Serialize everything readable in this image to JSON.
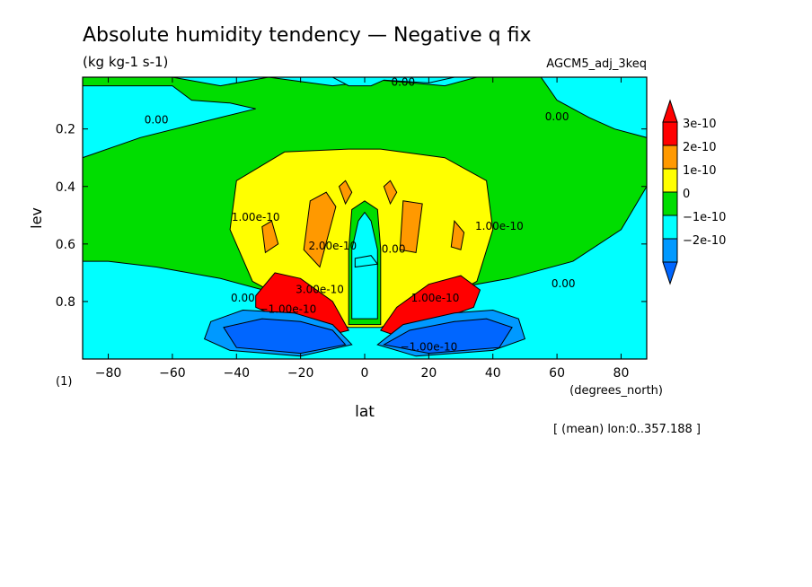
{
  "header": {
    "title": "Absolute humidity tendency — Negative q fix",
    "units": "(kg kg-1 s-1)",
    "run": "AGCM5_adj_3keq"
  },
  "footer": {
    "region_note": "[ (mean) lon:0..357.188 ]",
    "panel_index": "(1)"
  },
  "chart_data": {
    "type": "heatmap",
    "xlabel": "lat",
    "xunits": "(degrees_north)",
    "ylabel": "lev",
    "xlim": [
      -88,
      88
    ],
    "ylim": [
      1.0,
      0.02
    ],
    "x_ticks": [
      -80,
      -60,
      -40,
      -20,
      0,
      20,
      40,
      60,
      80
    ],
    "x_tick_labels": [
      "−80",
      "−60",
      "−40",
      "−20",
      "0",
      "20",
      "40",
      "60",
      "80"
    ],
    "y_ticks": [
      0.2,
      0.4,
      0.6,
      0.8
    ],
    "y_tick_labels": [
      "0.2",
      "0.4",
      "0.6",
      "0.8"
    ],
    "legend": {
      "placement": "right",
      "levels": [
        {
          "label": "3e-10",
          "color": "#ff0000"
        },
        {
          "label": "2e-10",
          "color": "#ff9900"
        },
        {
          "label": "1e-10",
          "color": "#ffff00"
        },
        {
          "label": "0",
          "color": "#00dd00"
        },
        {
          "label": "−1e-10",
          "color": "#00ffff"
        },
        {
          "label": "−2e-10",
          "color": "#0099ff"
        }
      ],
      "under_color": "#0066ff"
    },
    "background_color": "#00ffff",
    "regions": [
      {
        "level": "0",
        "color": "#00dd00",
        "points": [
          [
            -88,
            0.02
          ],
          [
            -60,
            0.02
          ],
          [
            -45,
            0.05
          ],
          [
            -30,
            0.02
          ],
          [
            -10,
            0.05
          ],
          [
            5,
            0.03
          ],
          [
            25,
            0.05
          ],
          [
            35,
            0.02
          ],
          [
            88,
            0.02
          ],
          [
            88,
            0.4
          ],
          [
            80,
            0.55
          ],
          [
            65,
            0.66
          ],
          [
            45,
            0.72
          ],
          [
            25,
            0.76
          ],
          [
            5,
            0.87
          ],
          [
            -5,
            0.87
          ],
          [
            -25,
            0.78
          ],
          [
            -45,
            0.72
          ],
          [
            -65,
            0.68
          ],
          [
            -80,
            0.66
          ],
          [
            -88,
            0.66
          ]
        ]
      },
      {
        "level": "1e-10",
        "color": "#ffff00",
        "points": [
          [
            -40,
            0.38
          ],
          [
            -25,
            0.28
          ],
          [
            -5,
            0.27
          ],
          [
            5,
            0.27
          ],
          [
            25,
            0.3
          ],
          [
            38,
            0.38
          ],
          [
            40,
            0.55
          ],
          [
            35,
            0.73
          ],
          [
            20,
            0.82
          ],
          [
            5,
            0.89
          ],
          [
            -5,
            0.89
          ],
          [
            -20,
            0.82
          ],
          [
            -35,
            0.73
          ],
          [
            -42,
            0.55
          ]
        ]
      },
      {
        "level": "0",
        "color": "#00dd00",
        "points": [
          [
            -4,
            0.48
          ],
          [
            0,
            0.45
          ],
          [
            4,
            0.48
          ],
          [
            5,
            0.62
          ],
          [
            5,
            0.88
          ],
          [
            -5,
            0.88
          ],
          [
            -5,
            0.62
          ]
        ]
      },
      {
        "level": "−1e-10",
        "color": "#00ffff",
        "points": [
          [
            -2,
            0.52
          ],
          [
            0,
            0.49
          ],
          [
            2,
            0.52
          ],
          [
            4,
            0.62
          ],
          [
            4,
            0.86
          ],
          [
            -4,
            0.86
          ],
          [
            -4,
            0.62
          ]
        ]
      },
      {
        "level": "2e-10",
        "color": "#ff9900",
        "points": [
          [
            -17,
            0.45
          ],
          [
            -12,
            0.42
          ],
          [
            -9,
            0.47
          ],
          [
            -14,
            0.68
          ],
          [
            -19,
            0.62
          ]
        ]
      },
      {
        "level": "2e-10",
        "color": "#ff9900",
        "points": [
          [
            -32,
            0.54
          ],
          [
            -29,
            0.52
          ],
          [
            -27,
            0.6
          ],
          [
            -31,
            0.63
          ]
        ]
      },
      {
        "level": "2e-10",
        "color": "#ff9900",
        "points": [
          [
            12,
            0.45
          ],
          [
            18,
            0.46
          ],
          [
            16,
            0.63
          ],
          [
            11,
            0.62
          ]
        ]
      },
      {
        "level": "2e-10",
        "color": "#ff9900",
        "points": [
          [
            28,
            0.52
          ],
          [
            31,
            0.56
          ],
          [
            30,
            0.62
          ],
          [
            27,
            0.61
          ]
        ]
      },
      {
        "level": "2e-10",
        "color": "#ff9900",
        "points": [
          [
            -8,
            0.4
          ],
          [
            -6,
            0.38
          ],
          [
            -4,
            0.42
          ],
          [
            -6,
            0.46
          ]
        ]
      },
      {
        "level": "2e-10",
        "color": "#ff9900",
        "points": [
          [
            6,
            0.4
          ],
          [
            8,
            0.38
          ],
          [
            10,
            0.42
          ],
          [
            8,
            0.46
          ]
        ]
      },
      {
        "level": "3e-10",
        "color": "#ff0000",
        "points": [
          [
            -34,
            0.78
          ],
          [
            -28,
            0.7
          ],
          [
            -20,
            0.72
          ],
          [
            -10,
            0.8
          ],
          [
            -5,
            0.9
          ],
          [
            -12,
            0.92
          ],
          [
            -26,
            0.86
          ],
          [
            -34,
            0.82
          ]
        ]
      },
      {
        "level": "3e-10",
        "color": "#ff0000",
        "points": [
          [
            5,
            0.9
          ],
          [
            10,
            0.82
          ],
          [
            20,
            0.74
          ],
          [
            30,
            0.71
          ],
          [
            36,
            0.76
          ],
          [
            34,
            0.82
          ],
          [
            24,
            0.86
          ],
          [
            10,
            0.92
          ]
        ]
      },
      {
        "level": "−2e-10",
        "color": "#0099ff",
        "points": [
          [
            -48,
            0.87
          ],
          [
            -38,
            0.83
          ],
          [
            -22,
            0.84
          ],
          [
            -10,
            0.88
          ],
          [
            -4,
            0.95
          ],
          [
            -20,
            0.99
          ],
          [
            -42,
            0.97
          ],
          [
            -50,
            0.93
          ]
        ]
      },
      {
        "level": "−2e-10",
        "color": "#0099ff",
        "points": [
          [
            4,
            0.95
          ],
          [
            12,
            0.88
          ],
          [
            28,
            0.84
          ],
          [
            40,
            0.83
          ],
          [
            48,
            0.86
          ],
          [
            50,
            0.93
          ],
          [
            40,
            0.97
          ],
          [
            16,
            0.99
          ]
        ]
      },
      {
        "level": "<−2e-10",
        "color": "#0066ff",
        "points": [
          [
            -44,
            0.89
          ],
          [
            -32,
            0.86
          ],
          [
            -20,
            0.87
          ],
          [
            -10,
            0.9
          ],
          [
            -6,
            0.95
          ],
          [
            -20,
            0.98
          ],
          [
            -40,
            0.96
          ]
        ]
      },
      {
        "level": "<−2e-10",
        "color": "#0066ff",
        "points": [
          [
            6,
            0.95
          ],
          [
            14,
            0.9
          ],
          [
            28,
            0.87
          ],
          [
            38,
            0.86
          ],
          [
            46,
            0.89
          ],
          [
            42,
            0.96
          ],
          [
            20,
            0.98
          ]
        ]
      },
      {
        "level": "−1e-10",
        "color": "#00ffff",
        "points": [
          [
            -88,
            0.05
          ],
          [
            -60,
            0.05
          ],
          [
            -54,
            0.1
          ],
          [
            -42,
            0.11
          ],
          [
            -34,
            0.13
          ],
          [
            -45,
            0.16
          ],
          [
            -70,
            0.23
          ],
          [
            -88,
            0.3
          ]
        ]
      },
      {
        "level": "−1e-10",
        "color": "#00ffff",
        "points": [
          [
            -10,
            0.02
          ],
          [
            -5,
            0.05
          ],
          [
            2,
            0.05
          ],
          [
            6,
            0.03
          ],
          [
            20,
            0.04
          ],
          [
            28,
            0.02
          ]
        ]
      },
      {
        "level": "−1e-10",
        "color": "#00ffff",
        "points": [
          [
            55,
            0.02
          ],
          [
            88,
            0.02
          ],
          [
            88,
            0.23
          ],
          [
            78,
            0.2
          ],
          [
            70,
            0.16
          ],
          [
            60,
            0.1
          ]
        ]
      },
      {
        "level": "−1e-10",
        "color": "#00ffff",
        "points": [
          [
            -3,
            0.65
          ],
          [
            2,
            0.64
          ],
          [
            4,
            0.67
          ],
          [
            -3,
            0.68
          ]
        ]
      }
    ],
    "contour_labels": [
      {
        "text": "0.00",
        "x": 12,
        "y": 0.05
      },
      {
        "text": "0.00",
        "x": -65,
        "y": 0.18
      },
      {
        "text": "0.00",
        "x": 60,
        "y": 0.17
      },
      {
        "text": "0.00",
        "x": 62,
        "y": 0.75
      },
      {
        "text": "0.00",
        "x": -38,
        "y": 0.8
      },
      {
        "text": "0.00",
        "x": 9,
        "y": 0.63
      },
      {
        "text": "1.00e-10",
        "x": -34,
        "y": 0.52
      },
      {
        "text": "1.00e-10",
        "x": 42,
        "y": 0.55
      },
      {
        "text": "1.00e-10",
        "x": 22,
        "y": 0.8
      },
      {
        "text": "2.00e-10",
        "x": -10,
        "y": 0.62
      },
      {
        "text": "3.00e-10",
        "x": -14,
        "y": 0.77
      },
      {
        "text": "−1.00e-10",
        "x": -24,
        "y": 0.84
      },
      {
        "text": "−1.00e-10",
        "x": 20,
        "y": 0.97
      }
    ]
  }
}
